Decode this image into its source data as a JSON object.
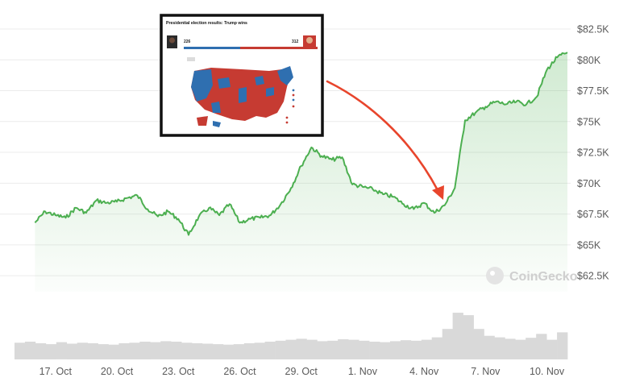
{
  "chart_data": {
    "type": "area",
    "title": "",
    "xlabel": "",
    "ylabel": "",
    "ylim": [
      61200,
      84200
    ],
    "y_ticks": [
      62500,
      65000,
      67500,
      70000,
      72500,
      75000,
      77500,
      80000,
      82500
    ],
    "y_tick_labels": [
      "$62.5K",
      "$65K",
      "$67.5K",
      "$70K",
      "$72.5K",
      "$75K",
      "$77.5K",
      "$80K",
      "$82.5K"
    ],
    "x_range": [
      "2024-10-15",
      "2024-11-11"
    ],
    "x_ticks": [
      "2024-10-17",
      "2024-10-20",
      "2024-10-23",
      "2024-10-26",
      "2024-10-29",
      "2024-11-01",
      "2024-11-04",
      "2024-11-07",
      "2024-11-10"
    ],
    "x_tick_labels": [
      "17. Oct",
      "20. Oct",
      "23. Oct",
      "26. Oct",
      "29. Oct",
      "1. Nov",
      "4. Nov",
      "7. Nov",
      "10. Nov"
    ],
    "grid": true,
    "line_color": "#4caf50",
    "fill_color": "#4caf50",
    "volume_color": "#d9d9d9",
    "annotation_color": "#e8452c",
    "series": [
      {
        "x": [
          "2024-10-16",
          "2024-10-16.5",
          "2024-10-17",
          "2024-10-17.5",
          "2024-10-18",
          "2024-10-18.5",
          "2024-10-19",
          "2024-10-19.5",
          "2024-10-20",
          "2024-10-20.5",
          "2024-10-21",
          "2024-10-21.5",
          "2024-10-22",
          "2024-10-22.5",
          "2024-10-23",
          "2024-10-23.5",
          "2024-10-24",
          "2024-10-24.5",
          "2024-10-25",
          "2024-10-25.5",
          "2024-10-26",
          "2024-10-26.5",
          "2024-10-27",
          "2024-10-27.5",
          "2024-10-28",
          "2024-10-28.5",
          "2024-10-29",
          "2024-10-29.5",
          "2024-10-30",
          "2024-10-30.5",
          "2024-10-31",
          "2024-10-31.5",
          "2024-11-01",
          "2024-11-01.5",
          "2024-11-02",
          "2024-11-02.5",
          "2024-11-03",
          "2024-11-03.5",
          "2024-11-04",
          "2024-11-04.5",
          "2024-11-05",
          "2024-11-05.5",
          "2024-11-06",
          "2024-11-06.5",
          "2024-11-07",
          "2024-11-07.5",
          "2024-11-08",
          "2024-11-08.5",
          "2024-11-09",
          "2024-11-09.5",
          "2024-11-10",
          "2024-11-10.5",
          "2024-11-11"
        ],
        "values": [
          66800,
          67700,
          67400,
          67200,
          68000,
          67600,
          68600,
          68400,
          68500,
          68800,
          69000,
          67900,
          67300,
          67700,
          67100,
          65800,
          67300,
          68000,
          67400,
          68300,
          66800,
          67100,
          67200,
          67400,
          68300,
          69600,
          71400,
          72900,
          72200,
          71900,
          72100,
          69900,
          69700,
          69500,
          69100,
          68900,
          68300,
          67900,
          68400,
          67600,
          68200,
          69600,
          75100,
          75700,
          76200,
          76600,
          76400,
          76600,
          76400,
          77000,
          79200,
          80200,
          80600
        ]
      }
    ],
    "volume": [
      0.34,
      0.36,
      0.33,
      0.31,
      0.35,
      0.32,
      0.34,
      0.33,
      0.31,
      0.3,
      0.33,
      0.34,
      0.36,
      0.35,
      0.37,
      0.36,
      0.34,
      0.33,
      0.32,
      0.31,
      0.3,
      0.31,
      0.33,
      0.34,
      0.36,
      0.38,
      0.4,
      0.42,
      0.4,
      0.37,
      0.38,
      0.41,
      0.4,
      0.38,
      0.36,
      0.35,
      0.37,
      0.39,
      0.38,
      0.4,
      0.45,
      0.62,
      0.95,
      0.9,
      0.62,
      0.48,
      0.45,
      0.42,
      0.4,
      0.44,
      0.52,
      0.4,
      0.55
    ],
    "watermark": "CoinGecko",
    "inset": {
      "title": "Presidential election results: Trump wins",
      "left_count": "226",
      "right_count": "312"
    }
  }
}
